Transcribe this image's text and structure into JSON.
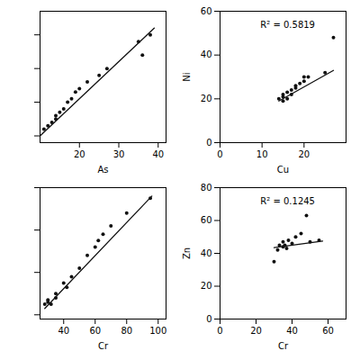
{
  "chart_data": [
    {
      "type": "scatter",
      "xlabel": "As",
      "xlim": [
        10,
        42
      ],
      "ylim": [
        18,
        57
      ],
      "xticks": [
        20,
        30,
        40
      ],
      "yticks": [
        20,
        30,
        40,
        50
      ],
      "tick_labels": "x",
      "grid": false,
      "series": [
        {
          "type": "scatter",
          "color": "#111111",
          "x": [
            11,
            12,
            13,
            14,
            14,
            15,
            16,
            17,
            18,
            19,
            20,
            22,
            25,
            27,
            35,
            36,
            38
          ],
          "values": [
            22,
            23,
            24,
            25,
            26,
            27,
            28,
            30,
            31,
            33,
            34,
            36,
            38,
            40,
            48,
            44,
            50
          ]
        },
        {
          "type": "line",
          "color": "#111111",
          "x": [
            10,
            39
          ],
          "values": [
            20.0,
            52.0
          ]
        }
      ]
    },
    {
      "type": "scatter",
      "xlabel": "Cu",
      "ylabel": "Ni",
      "annotation": "R² = 0.5819",
      "xlim": [
        0,
        30
      ],
      "ylim": [
        0,
        60
      ],
      "xticks": [
        0,
        10,
        20
      ],
      "yticks": [
        0,
        20,
        40,
        60
      ],
      "grid": false,
      "series": [
        {
          "type": "scatter",
          "color": "#111111",
          "x": [
            14,
            15,
            15,
            15,
            16,
            16,
            17,
            17,
            18,
            18,
            19,
            20,
            20,
            21,
            25,
            27
          ],
          "values": [
            20,
            19,
            21,
            22,
            20,
            23,
            22,
            24,
            25,
            26,
            27,
            28,
            30,
            30,
            32,
            48
          ]
        },
        {
          "type": "line",
          "color": "#111111",
          "x": [
            14,
            27
          ],
          "values": [
            19,
            33
          ]
        }
      ]
    },
    {
      "type": "scatter",
      "xlabel": "Cr",
      "xlim": [
        25,
        105
      ],
      "ylim": [
        18,
        80
      ],
      "xticks": [
        40,
        60,
        80,
        100
      ],
      "yticks": [
        20,
        40,
        60,
        80
      ],
      "tick_labels": "x",
      "grid": false,
      "series": [
        {
          "type": "scatter",
          "color": "#111111",
          "x": [
            28,
            30,
            30,
            32,
            35,
            35,
            40,
            42,
            45,
            50,
            55,
            60,
            62,
            65,
            70,
            80,
            95
          ],
          "values": [
            25,
            26,
            27,
            25,
            30,
            28,
            35,
            33,
            38,
            42,
            48,
            52,
            55,
            58,
            62,
            68,
            75
          ]
        },
        {
          "type": "line",
          "color": "#111111",
          "x": [
            28,
            96
          ],
          "values": [
            23,
            76
          ]
        }
      ]
    },
    {
      "type": "scatter",
      "xlabel": "Cr",
      "ylabel": "Zn",
      "annotation": "R² = 0.1245",
      "xlim": [
        0,
        70
      ],
      "ylim": [
        0,
        80
      ],
      "xticks": [
        0,
        20,
        40,
        60
      ],
      "yticks": [
        0,
        20,
        40,
        60,
        80
      ],
      "grid": false,
      "series": [
        {
          "type": "scatter",
          "color": "#111111",
          "x": [
            30,
            32,
            33,
            35,
            35,
            36,
            37,
            38,
            40,
            42,
            45,
            48,
            50,
            55
          ],
          "values": [
            35,
            42,
            45,
            44,
            47,
            45,
            43,
            48,
            46,
            50,
            52,
            63,
            47,
            48
          ]
        },
        {
          "type": "line",
          "color": "#111111",
          "x": [
            30,
            57
          ],
          "values": [
            43.5,
            47.5
          ]
        }
      ]
    }
  ]
}
